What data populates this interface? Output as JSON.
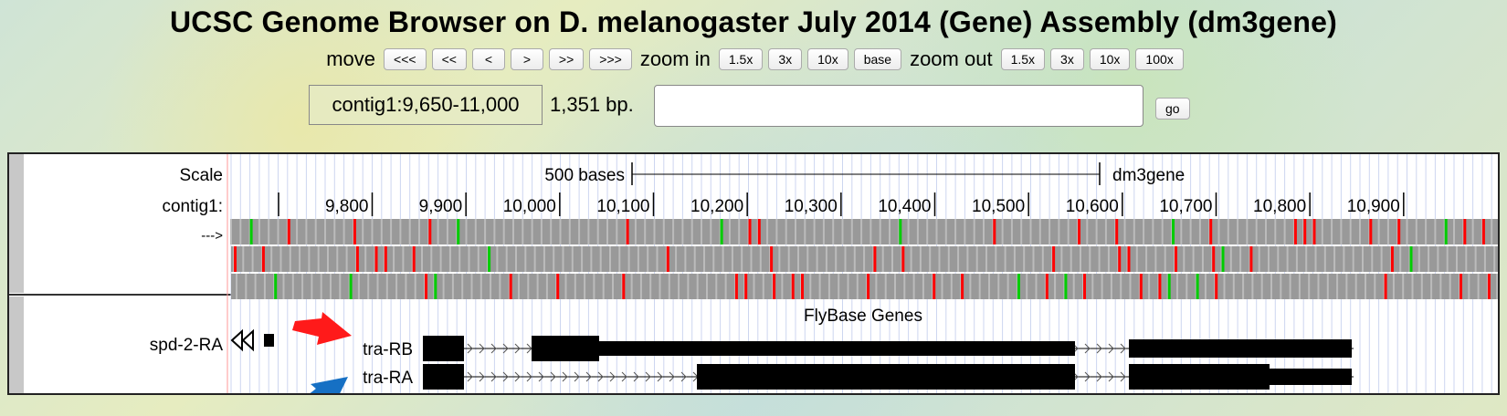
{
  "title": "UCSC Genome Browser on D. melanogaster July 2014 (Gene) Assembly (dm3gene)",
  "nav": {
    "move_label": "move",
    "move_buttons": [
      "<<<",
      "<<",
      "<",
      ">",
      ">>",
      ">>>"
    ],
    "zoom_in_label": "zoom in",
    "zoom_in_buttons": [
      "1.5x",
      "3x",
      "10x",
      "base"
    ],
    "zoom_out_label": "zoom out",
    "zoom_out_buttons": [
      "1.5x",
      "3x",
      "10x",
      "100x"
    ]
  },
  "position": {
    "value": "contig1:9,650-11,000",
    "size": "1,351 bp.",
    "search_value": "",
    "go_label": "go"
  },
  "tracks": {
    "scale_label": "Scale",
    "scale_bar_text": "500 bases",
    "assembly_label": "dm3gene",
    "chrom_label": "contig1:",
    "strand_label": "--->",
    "ruler_ticks": [
      "9,800",
      "9,900",
      "10,000",
      "10,100",
      "10,200",
      "10,300",
      "10,400",
      "10,500",
      "10,600",
      "10,700",
      "10,800",
      "10,900"
    ],
    "genes_track_title": "FlyBase Genes",
    "genes": [
      "spd-2-RA",
      "tra-RB",
      "tra-RA"
    ],
    "colors": {
      "frame_gray": "#999999",
      "stop_codon": "#ff0000",
      "start_codon": "#00cc00",
      "gene_black": "#000000",
      "arrow_red": "#ff1a1a",
      "arrow_blue": "#1670c4"
    }
  }
}
